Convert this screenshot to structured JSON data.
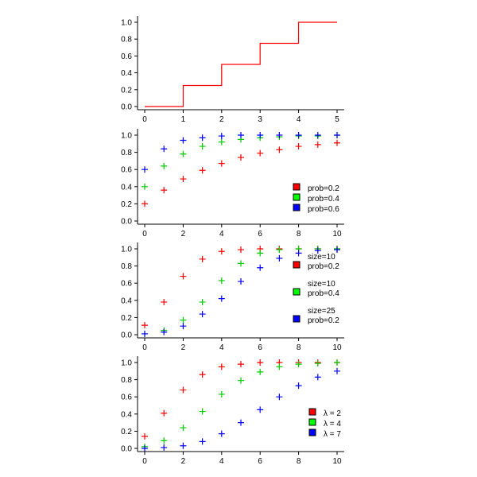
{
  "chart_data": [
    {
      "type": "line",
      "step": true,
      "x_ticks": [
        "0",
        "1",
        "2",
        "3",
        "4",
        "5"
      ],
      "y_ticks": [
        "0.0",
        "0.2",
        "0.4",
        "0.6",
        "0.8",
        "1.0"
      ],
      "xlim": [
        0,
        5
      ],
      "ylim": [
        0,
        1
      ],
      "series": [
        {
          "color": "#ff0000",
          "x": [
            0,
            1,
            1,
            2,
            2,
            3,
            3,
            4,
            4,
            5
          ],
          "y": [
            0,
            0,
            0.25,
            0.25,
            0.5,
            0.5,
            0.75,
            0.75,
            1.0,
            1.0
          ]
        }
      ],
      "legend": []
    },
    {
      "type": "scatter",
      "marker": "plus",
      "x_ticks": [
        "0",
        "2",
        "4",
        "6",
        "8",
        "10"
      ],
      "y_ticks": [
        "0.0",
        "0.2",
        "0.4",
        "0.6",
        "0.8",
        "1.0"
      ],
      "xlim": [
        0,
        10
      ],
      "ylim": [
        0,
        1
      ],
      "legend_position": "bottom-right",
      "series": [
        {
          "color": "#ff0000",
          "x": [
            0,
            1,
            2,
            3,
            4,
            5,
            6,
            7,
            8,
            9,
            10
          ],
          "y": [
            0.2,
            0.36,
            0.49,
            0.59,
            0.67,
            0.74,
            0.79,
            0.83,
            0.87,
            0.89,
            0.91
          ]
        },
        {
          "color": "#00cc00",
          "x": [
            0,
            1,
            2,
            3,
            4,
            5,
            6,
            7,
            8,
            9,
            10
          ],
          "y": [
            0.4,
            0.64,
            0.78,
            0.87,
            0.92,
            0.95,
            0.97,
            0.98,
            0.99,
            0.99,
            1.0
          ]
        },
        {
          "color": "#0000ff",
          "x": [
            0,
            1,
            2,
            3,
            4,
            5,
            6,
            7,
            8,
            9,
            10
          ],
          "y": [
            0.6,
            0.84,
            0.94,
            0.97,
            0.99,
            1.0,
            1.0,
            1.0,
            1.0,
            1.0,
            1.0
          ]
        }
      ],
      "legend": [
        {
          "color": "#ff0000",
          "lines": [
            "prob=0.2"
          ]
        },
        {
          "color": "#00ff00",
          "lines": [
            "prob=0.4"
          ]
        },
        {
          "color": "#0000ff",
          "lines": [
            "prob=0.6"
          ]
        }
      ]
    },
    {
      "type": "scatter",
      "marker": "plus",
      "x_ticks": [
        "0",
        "2",
        "4",
        "6",
        "8",
        "10"
      ],
      "y_ticks": [
        "0.0",
        "0.2",
        "0.4",
        "0.6",
        "0.8",
        "1.0"
      ],
      "xlim": [
        0,
        10
      ],
      "ylim": [
        0,
        1
      ],
      "legend_position": "right",
      "series": [
        {
          "color": "#ff0000",
          "x": [
            0,
            1,
            2,
            3,
            4,
            5,
            6,
            7,
            8,
            9,
            10
          ],
          "y": [
            0.11,
            0.38,
            0.68,
            0.88,
            0.97,
            0.99,
            1.0,
            1.0,
            1.0,
            1.0,
            1.0
          ]
        },
        {
          "color": "#00cc00",
          "x": [
            0,
            1,
            2,
            3,
            4,
            5,
            6,
            7,
            8,
            9,
            10
          ],
          "y": [
            0.01,
            0.05,
            0.17,
            0.38,
            0.63,
            0.83,
            0.95,
            0.99,
            1.0,
            1.0,
            1.0
          ]
        },
        {
          "color": "#0000ff",
          "x": [
            0,
            1,
            2,
            3,
            4,
            5,
            6,
            7,
            8,
            9,
            10
          ],
          "y": [
            0.01,
            0.03,
            0.1,
            0.24,
            0.42,
            0.62,
            0.78,
            0.89,
            0.95,
            0.98,
            0.99
          ]
        }
      ],
      "legend": [
        {
          "color": "#ff0000",
          "lines": [
            "size=10",
            "prob=0.2"
          ]
        },
        {
          "color": "#00ff00",
          "lines": [
            "size=10",
            "prob=0.4"
          ]
        },
        {
          "color": "#0000ff",
          "lines": [
            "size=25",
            "prob=0.2"
          ]
        }
      ]
    },
    {
      "type": "scatter",
      "marker": "plus",
      "x_ticks": [
        "0",
        "2",
        "4",
        "6",
        "8",
        "10"
      ],
      "y_ticks": [
        "0.0",
        "0.2",
        "0.4",
        "0.6",
        "0.8",
        "1.0"
      ],
      "xlim": [
        0,
        10
      ],
      "ylim": [
        0,
        1
      ],
      "legend_position": "bottom-right",
      "series": [
        {
          "color": "#ff0000",
          "x": [
            0,
            1,
            2,
            3,
            4,
            5,
            6,
            7,
            8,
            9,
            10
          ],
          "y": [
            0.14,
            0.41,
            0.68,
            0.86,
            0.95,
            0.98,
            1.0,
            1.0,
            1.0,
            1.0,
            1.0
          ]
        },
        {
          "color": "#00cc00",
          "x": [
            0,
            1,
            2,
            3,
            4,
            5,
            6,
            7,
            8,
            9,
            10
          ],
          "y": [
            0.02,
            0.09,
            0.24,
            0.43,
            0.63,
            0.79,
            0.89,
            0.95,
            0.98,
            0.99,
            1.0
          ]
        },
        {
          "color": "#0000ff",
          "x": [
            0,
            1,
            2,
            3,
            4,
            5,
            6,
            7,
            8,
            9,
            10
          ],
          "y": [
            0.0,
            0.01,
            0.03,
            0.08,
            0.17,
            0.3,
            0.45,
            0.6,
            0.73,
            0.83,
            0.9
          ]
        }
      ],
      "legend": [
        {
          "color": "#ff0000",
          "lines": [
            "λ = 2"
          ]
        },
        {
          "color": "#00ff00",
          "lines": [
            "λ = 4"
          ]
        },
        {
          "color": "#0000ff",
          "lines": [
            "λ = 7"
          ]
        }
      ]
    }
  ]
}
